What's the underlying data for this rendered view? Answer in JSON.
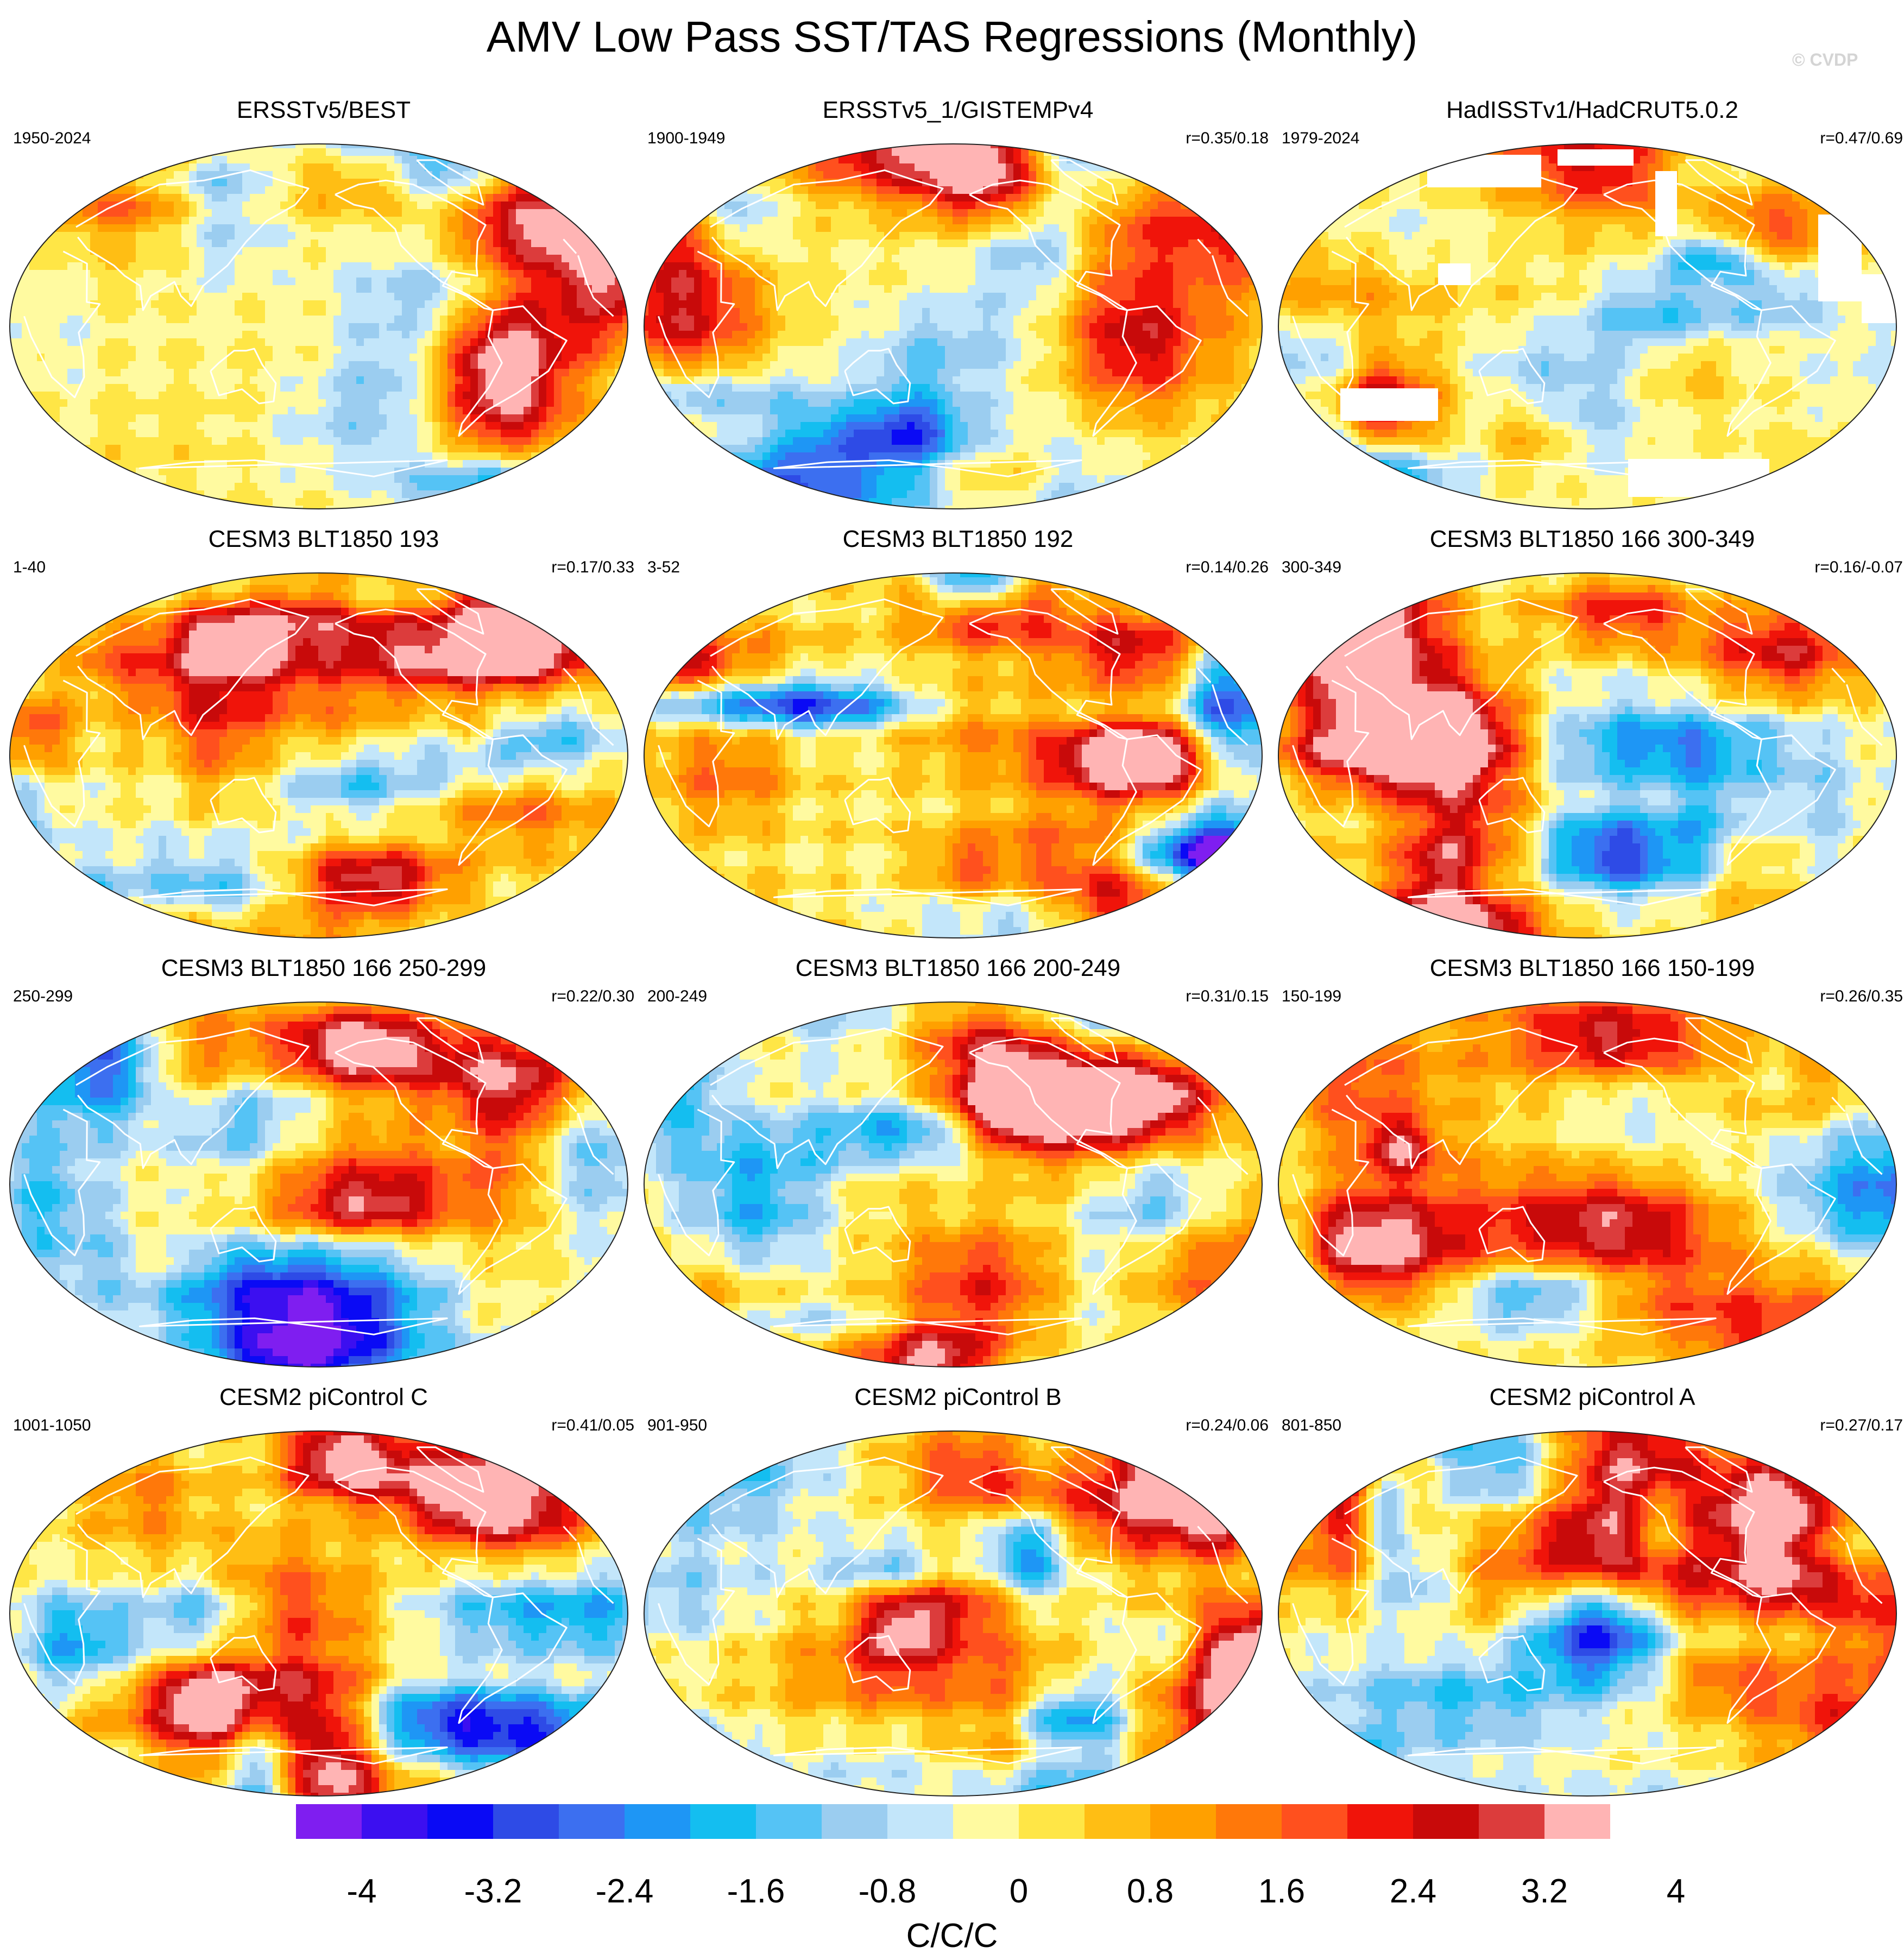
{
  "title": "AMV Low Pass SST/TAS Regressions (Monthly)",
  "watermark": "© CVDP",
  "panels": [
    {
      "title": "ERSSTv5/BEST",
      "period": "1950-2024",
      "corr": "",
      "land_gray": false,
      "missing": "none",
      "seed": 11,
      "amp": 0.65
    },
    {
      "title": "ERSSTv5_1/GISTEMPv4",
      "period": "1900-1949",
      "corr": "r=0.35/0.18",
      "land_gray": false,
      "missing": "none",
      "seed": 23,
      "amp": 0.65
    },
    {
      "title": "HadISSTv1/HadCRUT5.0.2",
      "period": "1979-2024",
      "corr": "r=0.47/0.69",
      "land_gray": false,
      "missing": "had",
      "seed": 37,
      "amp": 0.7
    },
    {
      "title": "CESM3 BLT1850 193",
      "period": "1-40",
      "corr": "r=0.17/0.33",
      "land_gray": false,
      "missing": "none",
      "seed": 41,
      "amp": 1.0
    },
    {
      "title": "CESM3 BLT1850 192",
      "period": "3-52",
      "corr": "r=0.14/0.26",
      "land_gray": false,
      "missing": "none",
      "seed": 53,
      "amp": 1.0
    },
    {
      "title": "CESM3 BLT1850 166 300-349",
      "period": "300-349",
      "corr": "r=0.16/-0.07",
      "land_gray": false,
      "missing": "none",
      "seed": 67,
      "amp": 1.0
    },
    {
      "title": "CESM3 BLT1850 166 250-299",
      "period": "250-299",
      "corr": "r=0.22/0.30",
      "land_gray": false,
      "missing": "none",
      "seed": 71,
      "amp": 0.85
    },
    {
      "title": "CESM3 BLT1850 166 200-249",
      "period": "200-249",
      "corr": "r=0.31/0.15",
      "land_gray": false,
      "missing": "none",
      "seed": 83,
      "amp": 0.85
    },
    {
      "title": "CESM3 BLT1850 166 150-199",
      "period": "150-199",
      "corr": "r=0.26/0.35",
      "land_gray": false,
      "missing": "none",
      "seed": 97,
      "amp": 0.75
    },
    {
      "title": "CESM2 piControl C",
      "period": "1001-1050",
      "corr": "r=0.41/0.05",
      "land_gray": false,
      "missing": "none",
      "seed": 101,
      "amp": 0.95
    },
    {
      "title": "CESM2 piControl B",
      "period": "901-950",
      "corr": "r=0.24/0.06",
      "land_gray": false,
      "missing": "none",
      "seed": 113,
      "amp": 0.95
    },
    {
      "title": "CESM2 piControl A",
      "period": "801-850",
      "corr": "r=0.27/0.17",
      "land_gray": false,
      "missing": "none",
      "seed": 127,
      "amp": 0.9
    }
  ],
  "colorbar": {
    "colors": [
      "#7f1ef0",
      "#3c0ff0",
      "#0a0af5",
      "#2e4be6",
      "#3c6ff0",
      "#1e96f5",
      "#14bef0",
      "#55c3f5",
      "#9bcdf0",
      "#c3e6fa",
      "#fffaa0",
      "#ffe646",
      "#ffbe14",
      "#ffa000",
      "#ff780a",
      "#ff501e",
      "#f0140a",
      "#c80a0a",
      "#dc3c3c",
      "#ffb4b4"
    ],
    "tick_values": [
      "-4",
      "-3.2",
      "-2.4",
      "-1.6",
      "-0.8",
      "0",
      "0.8",
      "1.6",
      "2.4",
      "3.2",
      "4"
    ],
    "levels": [
      -4.0,
      -3.6,
      -3.2,
      -2.8,
      -2.4,
      -2.0,
      -1.6,
      -1.2,
      -0.8,
      -0.4,
      0,
      0.4,
      0.8,
      1.2,
      1.6,
      2.0,
      2.4,
      2.8,
      3.2,
      3.6,
      4.0
    ],
    "units": "C/C/C"
  }
}
